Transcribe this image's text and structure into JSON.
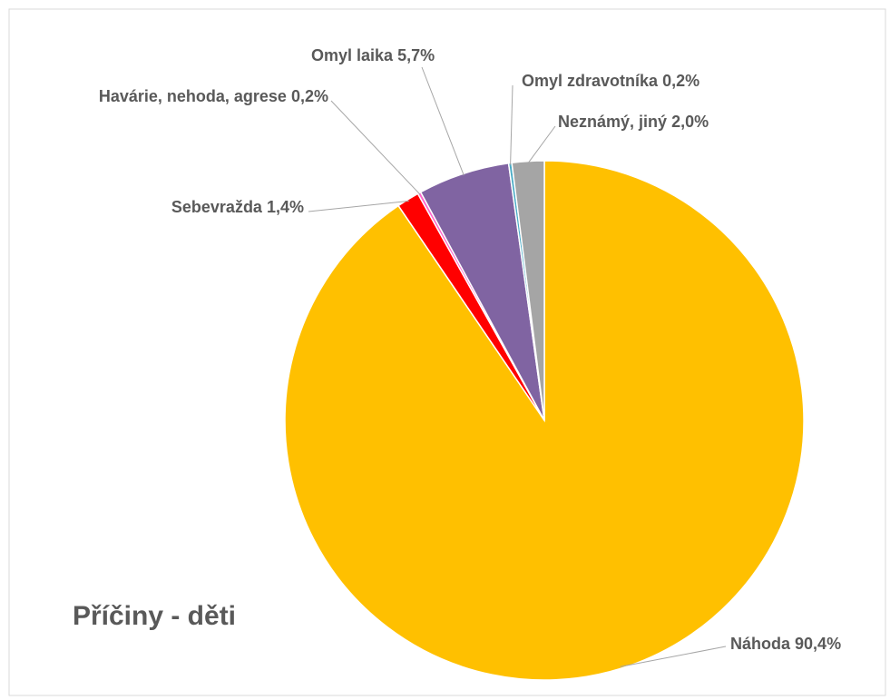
{
  "chart_data": {
    "type": "pie",
    "title": "Příčiny - děti",
    "categories": [
      "Náhoda",
      "Sebevražda",
      "Havárie, nehoda, agrese",
      "Omyl laika",
      "Omyl zdravotníka",
      "Neznámý, jiný"
    ],
    "values": [
      90.4,
      1.4,
      0.2,
      5.7,
      0.2,
      2.0
    ],
    "value_labels": [
      "90,4%",
      "1,4%",
      "0,2%",
      "5,7%",
      "0,2%",
      "2,0%"
    ],
    "colors": [
      "#ffc000",
      "#ff0000",
      "#ff66cc",
      "#8064a2",
      "#4bacc6",
      "#a5a5a5"
    ]
  }
}
